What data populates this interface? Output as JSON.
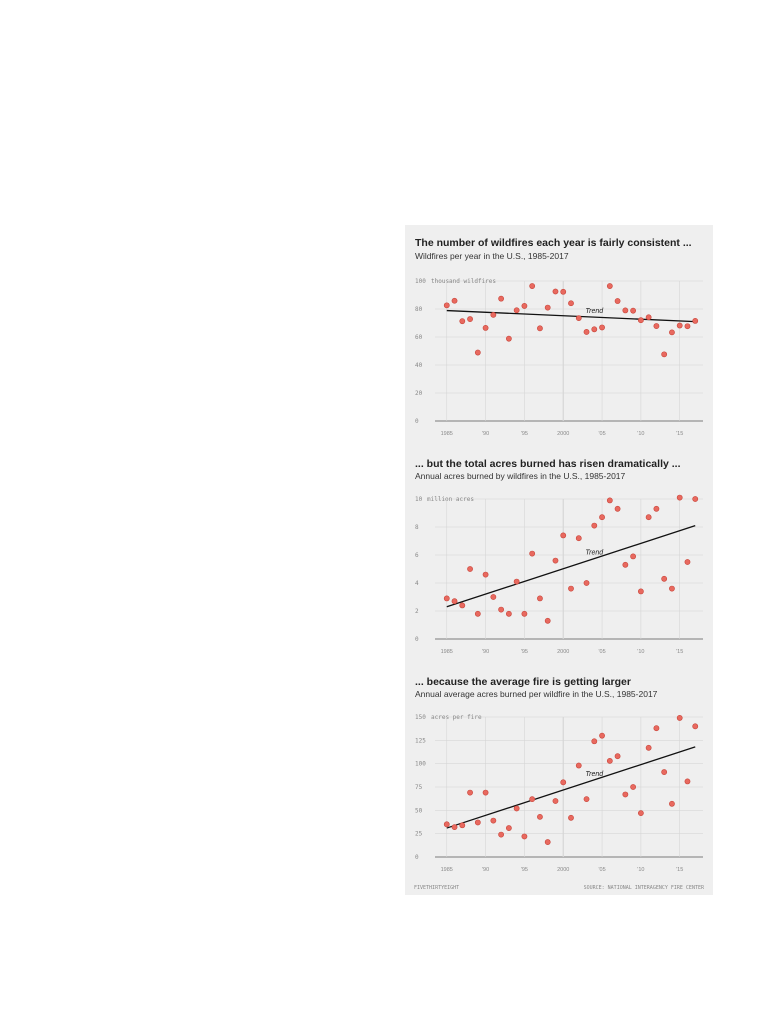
{
  "colors": {
    "panel_bg": "#efefef",
    "point": "#e8695f",
    "point_stroke": "#c9453a",
    "trend": "#111111",
    "grid": "#d6d6d6"
  },
  "footer": {
    "left": "FIVETHIRTYEIGHT",
    "right": "SOURCE: NATIONAL INTERAGENCY FIRE CENTER"
  },
  "chart_data": [
    {
      "type": "scatter",
      "title": "The number of wildfires each year is fairly consistent ...",
      "subtitle": "Wildfires per year in the U.S., 1985-2017",
      "unit_label": "thousand wildfires",
      "trend_label": "Trend",
      "ylim": [
        0,
        100
      ],
      "yticks": [
        0,
        20,
        40,
        60,
        80,
        100
      ],
      "ytick_labels": [
        "0",
        "20",
        "40",
        "60",
        "80",
        "100"
      ],
      "xlim": [
        1984,
        2018
      ],
      "xticks": [
        1985,
        1990,
        1995,
        2000,
        2005,
        2010,
        2015
      ],
      "xtick_labels": [
        "1985",
        "'90",
        "'95",
        "2000",
        "'05",
        "'10",
        "'15"
      ],
      "x": [
        1985,
        1986,
        1987,
        1988,
        1989,
        1990,
        1991,
        1992,
        1993,
        1994,
        1995,
        1996,
        1997,
        1998,
        1999,
        2000,
        2001,
        2002,
        2003,
        2004,
        2005,
        2006,
        2007,
        2008,
        2009,
        2010,
        2011,
        2012,
        2013,
        2014,
        2015,
        2016,
        2017
      ],
      "y": [
        82.6,
        85.9,
        71.3,
        72.8,
        48.9,
        66.5,
        75.8,
        87.4,
        58.8,
        79.1,
        82.2,
        96.4,
        66.2,
        81.0,
        92.5,
        92.3,
        84.1,
        73.5,
        63.6,
        65.5,
        66.8,
        96.4,
        85.7,
        79.0,
        78.8,
        72.0,
        74.1,
        67.8,
        47.6,
        63.3,
        68.2,
        67.7,
        71.5
      ],
      "trend": [
        [
          1985,
          78.9
        ],
        [
          2017,
          71.0
        ]
      ]
    },
    {
      "type": "scatter",
      "title": "... but the total acres burned has risen dramatically ...",
      "subtitle": "Annual acres burned by wildfires in the U.S., 1985-2017",
      "unit_label": "million acres",
      "trend_label": "Trend",
      "ylim": [
        0,
        10
      ],
      "yticks": [
        0,
        2,
        4,
        6,
        8,
        10
      ],
      "ytick_labels": [
        "0",
        "2",
        "4",
        "6",
        "8",
        "10"
      ],
      "xlim": [
        1984,
        2018
      ],
      "xticks": [
        1985,
        1990,
        1995,
        2000,
        2005,
        2010,
        2015
      ],
      "xtick_labels": [
        "1985",
        "'90",
        "'95",
        "2000",
        "'05",
        "'10",
        "'15"
      ],
      "x": [
        1985,
        1986,
        1987,
        1988,
        1989,
        1990,
        1991,
        1992,
        1993,
        1994,
        1995,
        1996,
        1997,
        1998,
        1999,
        2000,
        2001,
        2002,
        2003,
        2004,
        2005,
        2006,
        2007,
        2008,
        2009,
        2010,
        2011,
        2012,
        2013,
        2014,
        2015,
        2016,
        2017
      ],
      "y": [
        2.9,
        2.7,
        2.4,
        5.0,
        1.8,
        4.6,
        3.0,
        2.1,
        1.8,
        4.1,
        1.8,
        6.1,
        2.9,
        1.3,
        5.6,
        7.4,
        3.6,
        7.2,
        4.0,
        8.1,
        8.7,
        9.9,
        9.3,
        5.3,
        5.9,
        3.4,
        8.7,
        9.3,
        4.3,
        3.6,
        10.1,
        5.5,
        10.0
      ],
      "trend": [
        [
          1985,
          2.3
        ],
        [
          2017,
          8.1
        ]
      ]
    },
    {
      "type": "scatter",
      "title": "... because the average fire is getting larger",
      "subtitle": "Annual average acres burned per wildfire in the U.S., 1985-2017",
      "unit_label": "acres per fire",
      "trend_label": "Trend",
      "ylim": [
        0,
        150
      ],
      "yticks": [
        0,
        25,
        50,
        75,
        100,
        125,
        150
      ],
      "ytick_labels": [
        "0",
        "25",
        "50",
        "75",
        "100",
        "125",
        "150"
      ],
      "xlim": [
        1984,
        2018
      ],
      "xticks": [
        1985,
        1990,
        1995,
        2000,
        2005,
        2010,
        2015
      ],
      "xtick_labels": [
        "1985",
        "'90",
        "'95",
        "2000",
        "'05",
        "'10",
        "'15"
      ],
      "x": [
        1985,
        1986,
        1987,
        1988,
        1989,
        1990,
        1991,
        1992,
        1993,
        1994,
        1995,
        1996,
        1997,
        1998,
        1999,
        2000,
        2001,
        2002,
        2003,
        2004,
        2005,
        2006,
        2007,
        2008,
        2009,
        2010,
        2011,
        2012,
        2013,
        2014,
        2015,
        2016,
        2017
      ],
      "y": [
        35,
        32,
        34,
        69,
        37,
        69,
        39,
        24,
        31,
        52,
        22,
        62,
        43,
        16,
        60,
        80,
        42,
        98,
        62,
        124,
        130,
        103,
        108,
        67,
        75,
        47,
        117,
        138,
        91,
        57,
        149,
        81,
        140
      ],
      "trend": [
        [
          1985,
          31
        ],
        [
          2017,
          118
        ]
      ]
    }
  ]
}
